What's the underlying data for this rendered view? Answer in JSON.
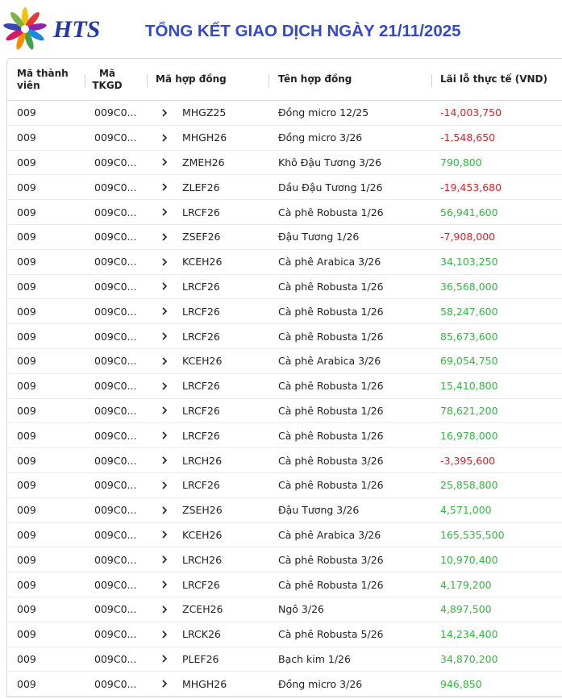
{
  "header": {
    "logo_text": "HTS",
    "title": "TỔNG KẾT GIAO DỊCH NGÀY 21/11/2025"
  },
  "table": {
    "columns": [
      "Mã thành viên",
      "Mã TKGD",
      "Mã hợp đồng",
      "Tên hợp đồng",
      "Lãi lỗ thực tế (VND)"
    ],
    "rows": [
      [
        "009",
        "009C0...",
        "MHGZ25",
        "Đồng micro 12/25",
        "-14,003,750"
      ],
      [
        "009",
        "009C0...",
        "MHGH26",
        "Đồng micro 3/26",
        "-1,548,650"
      ],
      [
        "009",
        "009C0...",
        "ZMEH26",
        "Khô Đậu Tương 3/26",
        "790,800"
      ],
      [
        "009",
        "009C0...",
        "ZLEF26",
        "Dầu Đậu Tương 1/26",
        "-19,453,680"
      ],
      [
        "009",
        "009C0...",
        "LRCF26",
        "Cà phê Robusta 1/26",
        "56,941,600"
      ],
      [
        "009",
        "009C0...",
        "ZSEF26",
        "Đậu Tương 1/26",
        "-7,908,000"
      ],
      [
        "009",
        "009C0...",
        "KCEH26",
        "Cà phê Arabica 3/26",
        "34,103,250"
      ],
      [
        "009",
        "009C0...",
        "LRCF26",
        "Cà phê Robusta 1/26",
        "36,568,000"
      ],
      [
        "009",
        "009C0...",
        "LRCF26",
        "Cà phê Robusta 1/26",
        "58,247,600"
      ],
      [
        "009",
        "009C0...",
        "LRCF26",
        "Cà phê Robusta 1/26",
        "85,673,600"
      ],
      [
        "009",
        "009C0...",
        "KCEH26",
        "Cà phê Arabica 3/26",
        "69,054,750"
      ],
      [
        "009",
        "009C0...",
        "LRCF26",
        "Cà phê Robusta 1/26",
        "15,410,800"
      ],
      [
        "009",
        "009C0...",
        "LRCF26",
        "Cà phê Robusta 1/26",
        "78,621,200"
      ],
      [
        "009",
        "009C0...",
        "LRCF26",
        "Cà phê Robusta 1/26",
        "16,978,000"
      ],
      [
        "009",
        "009C0...",
        "LRCH26",
        "Cà phê Robusta 3/26",
        "-3,395,600"
      ],
      [
        "009",
        "009C0...",
        "LRCF26",
        "Cà phê Robusta 1/26",
        "25,858,800"
      ],
      [
        "009",
        "009C0...",
        "ZSEH26",
        "Đậu Tương 3/26",
        "4,571,000"
      ],
      [
        "009",
        "009C0...",
        "KCEH26",
        "Cà phê Arabica 3/26",
        "165,535,500"
      ],
      [
        "009",
        "009C0...",
        "LRCH26",
        "Cà phê Robusta 3/26",
        "10,970,400"
      ],
      [
        "009",
        "009C0...",
        "LRCF26",
        "Cà phê Robusta 1/26",
        "4,179,200"
      ],
      [
        "009",
        "009C0...",
        "ZCEH26",
        "Ngô 3/26",
        "4,897,500"
      ],
      [
        "009",
        "009C0...",
        "LRCK26",
        "Cà phê Robusta 5/26",
        "14,234,400"
      ],
      [
        "009",
        "009C0...",
        "PLEF26",
        "Bạch kim 1/26",
        "34,870,200"
      ],
      [
        "009",
        "009C0...",
        "MHGH26",
        "Đồng micro 3/26",
        "946,850"
      ]
    ]
  }
}
